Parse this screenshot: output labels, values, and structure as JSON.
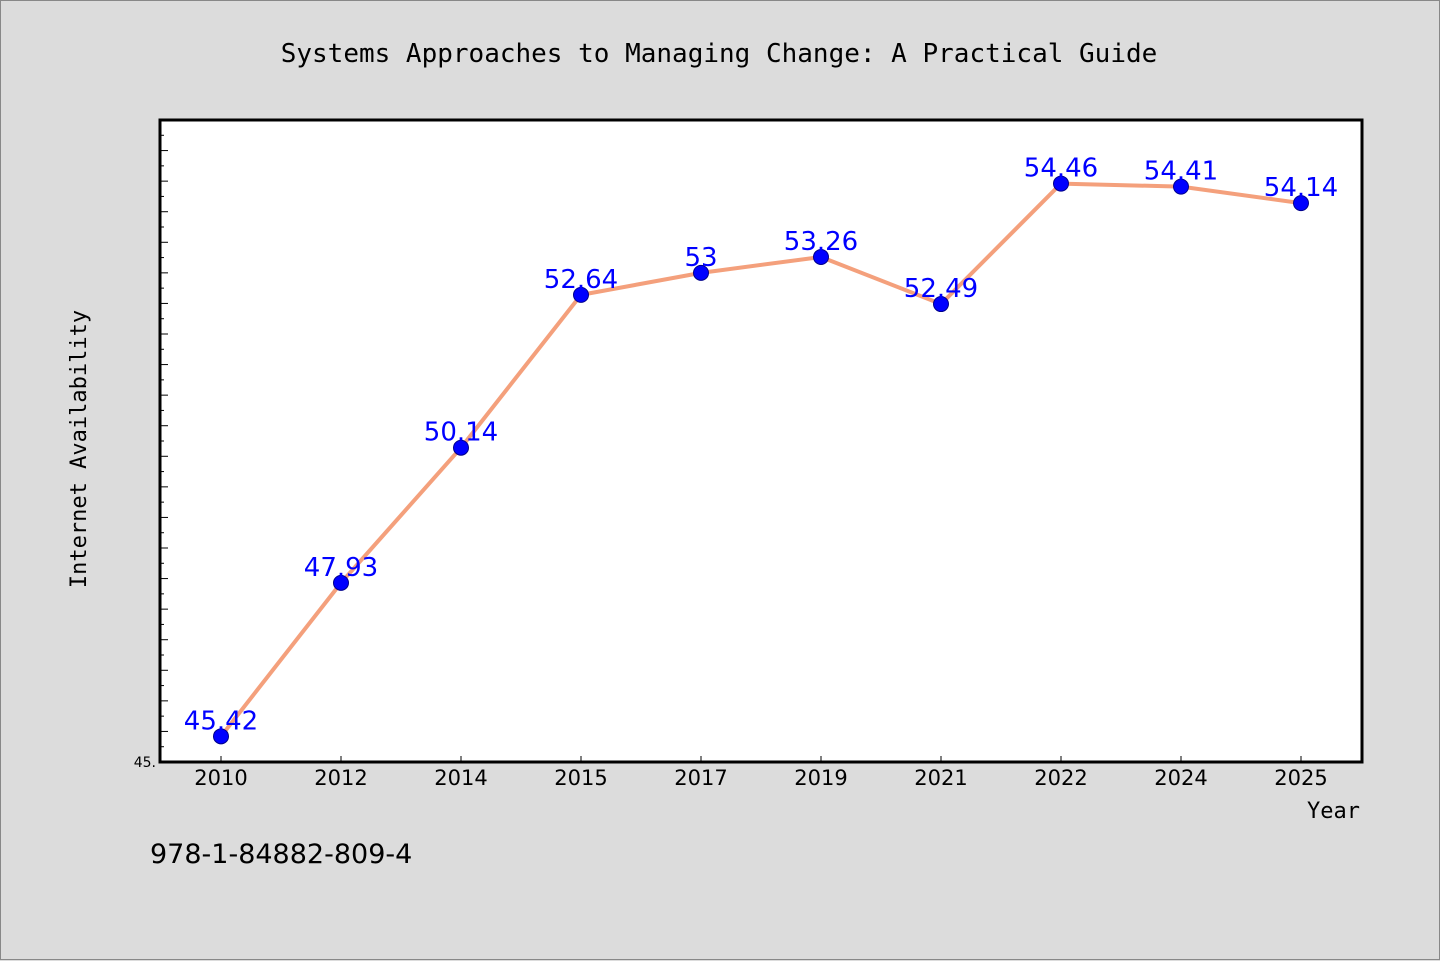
{
  "chart_data": {
    "type": "line",
    "title": "Systems Approaches to Managing Change: A Practical Guide",
    "xlabel": "Year",
    "ylabel": "Internet Availability",
    "categories": [
      "2010",
      "2012",
      "2014",
      "2015",
      "2017",
      "2019",
      "2021",
      "2022",
      "2024",
      "2025"
    ],
    "values": [
      45.42,
      47.93,
      50.14,
      52.64,
      53,
      53.26,
      52.49,
      54.46,
      54.41,
      54.14
    ],
    "data_labels": [
      "45.42",
      "47.93",
      "50.14",
      "52.64",
      "53",
      "53.26",
      "52.49",
      "54.46",
      "54.41",
      "54.14"
    ],
    "ylim": [
      45,
      55.5
    ],
    "y_tick_labels": [
      "45."
    ],
    "grid": false,
    "line_color": "#f4a07c",
    "marker_color": "#0000ff",
    "label_color": "#0000ff"
  },
  "footer": {
    "isbn": "978-1-84882-809-4"
  }
}
